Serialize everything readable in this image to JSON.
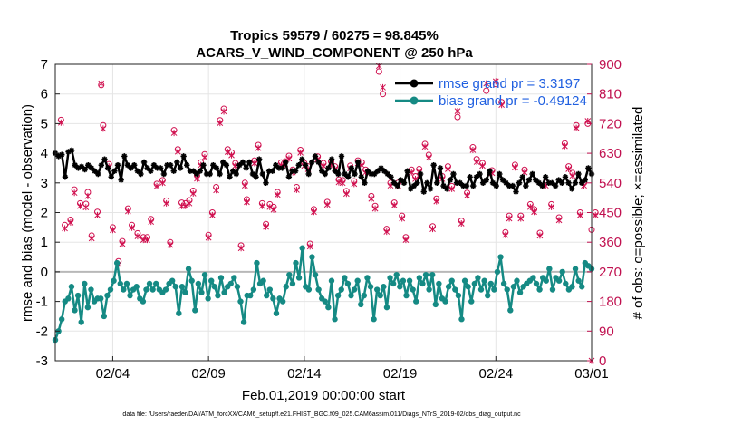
{
  "chart_data": {
    "type": "line",
    "title": "Tropics 59579 / 60275 = 98.845%",
    "subtitle": "ACARS_V_WIND_COMPONENT @ 250 hPa",
    "xlabel": "Feb.01,2019 00:00:00 start",
    "ylabel_left": "rmse and bias (model - observation)",
    "ylabel_right": "# of obs: o=possible; ×=assimilated",
    "footnote": "data file: /Users/raeder/DAI/ATM_forcXX/CAM6_setup/f.e21.FHIST_BGC.f09_025.CAM6assim.011/Diags_NTrS_2019-02/obs_diag_output.nc",
    "xlim": [
      0,
      28
    ],
    "ylim_left": [
      -3,
      7
    ],
    "ylim_right": [
      0,
      900
    ],
    "x_ticks": [
      {
        "x": 3,
        "label": "02/04"
      },
      {
        "x": 8,
        "label": "02/09"
      },
      {
        "x": 13,
        "label": "02/14"
      },
      {
        "x": 18,
        "label": "02/19"
      },
      {
        "x": 23,
        "label": "02/24"
      },
      {
        "x": 28,
        "label": "03/01"
      }
    ],
    "y_ticks_left": [
      "-3",
      "-2",
      "-1",
      "0",
      "1",
      "2",
      "3",
      "4",
      "5",
      "6",
      "7"
    ],
    "y_ticks_right": [
      "0",
      "90",
      "180",
      "270",
      "360",
      "450",
      "540",
      "630",
      "720",
      "810",
      "900"
    ],
    "zero_line": 0,
    "colors": {
      "rmse": "#000000",
      "bias": "#158a84",
      "obs": "#d0104f",
      "grid": "#e5e5e5",
      "legend_text": "#1f5fe0",
      "right_axis": "#c0104f"
    },
    "series": [
      {
        "name": "rmse grand pr = 3.3197",
        "color": "#000000",
        "values": [
          4.0,
          3.9,
          3.95,
          3.2,
          4.05,
          4.1,
          3.6,
          3.5,
          3.55,
          3.45,
          3.6,
          3.5,
          3.4,
          3.3,
          3.6,
          3.8,
          3.5,
          3.2,
          3.4,
          3.6,
          3.1,
          3.9,
          3.6,
          3.5,
          3.6,
          3.4,
          3.3,
          3.7,
          3.5,
          3.4,
          3.6,
          3.5,
          3.5,
          3.3,
          3.6,
          3.6,
          3.4,
          3.7,
          3.5,
          3.9,
          3.6,
          3.4,
          3.4,
          3.3,
          3.4,
          3.6,
          3.3,
          3.3,
          3.6,
          3.5,
          3.3,
          3.7,
          3.6,
          3.2,
          3.4,
          3.3,
          3.6,
          3.7,
          3.5,
          3.7,
          3.3,
          3.2,
          3.8,
          3.3,
          3.0,
          3.4,
          3.4,
          3.6,
          3.5,
          3.5,
          3.7,
          3.2,
          3.4,
          3.4,
          3.6,
          3.8,
          3.6,
          3.3,
          3.7,
          3.9,
          3.7,
          3.4,
          3.3,
          3.5,
          3.8,
          3.4,
          3.3,
          3.9,
          3.3,
          3.2,
          3.5,
          3.3,
          3.7,
          3.2,
          3.0,
          3.4,
          3.3,
          3.3,
          3.4,
          3.5,
          3.4,
          3.3,
          3.2,
          3.0,
          2.9,
          3.1,
          3.0,
          3.4,
          2.8,
          2.9,
          3.0,
          3.3,
          2.7,
          3.0,
          2.8,
          3.6,
          3.0,
          3.5,
          2.9,
          2.8,
          3.1,
          3.3,
          3.0,
          3.0,
          2.9,
          2.9,
          3.2,
          2.9,
          3.2,
          3.3,
          3.0,
          3.1,
          3.4,
          3.0,
          2.9,
          3.3,
          3.1,
          3.0,
          2.9,
          2.9,
          2.7,
          3.0,
          3.2,
          2.9,
          3.1,
          3.3,
          3.1,
          3.0,
          2.9,
          3.2,
          3.0,
          3.0,
          2.9,
          3.1,
          3.0,
          3.2,
          3.0,
          2.8,
          3.0,
          3.3,
          3.0,
          3.1,
          3.5,
          3.3
        ]
      },
      {
        "name": "bias grand pr = -0.49124",
        "color": "#158a84",
        "values": [
          -2.3,
          -2.0,
          -1.6,
          -1.0,
          -0.9,
          -0.5,
          -1.3,
          -0.8,
          -1.7,
          -0.4,
          -1.2,
          -0.6,
          -1.0,
          -0.9,
          -0.9,
          -1.5,
          -0.8,
          -0.6,
          -0.3,
          0.3,
          -0.4,
          -0.6,
          -0.4,
          -0.8,
          -0.6,
          -0.5,
          -0.9,
          -1.0,
          -0.6,
          -0.4,
          -0.6,
          -0.4,
          -0.6,
          -0.7,
          -0.6,
          -0.4,
          -0.3,
          -0.5,
          -1.4,
          -0.5,
          -0.7,
          0.1,
          -0.3,
          -1.3,
          -0.4,
          -0.7,
          -0.1,
          -0.9,
          -0.3,
          -0.5,
          -0.8,
          -0.2,
          -0.7,
          -0.5,
          -0.4,
          -0.2,
          -0.5,
          -1.0,
          -1.7,
          -0.8,
          -0.8,
          -0.6,
          0.3,
          -0.4,
          -0.3,
          -0.8,
          -0.6,
          -0.9,
          -1.4,
          -0.9,
          -1.0,
          -0.5,
          -0.1,
          -0.4,
          0.3,
          -0.2,
          0.8,
          -0.5,
          -0.6,
          0.5,
          -0.1,
          -0.6,
          -0.9,
          -1.0,
          -1.2,
          -0.3,
          -1.6,
          -0.8,
          -0.6,
          -0.2,
          -0.4,
          -0.8,
          -0.6,
          -0.3,
          -1.1,
          -0.8,
          -0.2,
          -0.5,
          -1.6,
          -0.6,
          -0.8,
          -0.5,
          -1.2,
          -0.2,
          -0.4,
          -0.1,
          -0.5,
          -0.3,
          -0.8,
          -0.3,
          -0.6,
          -1.0,
          -0.2,
          -0.4,
          -0.1,
          -0.6,
          -0.1,
          -1.1,
          -0.4,
          -0.9,
          -1.0,
          -0.5,
          -0.3,
          -0.6,
          -0.8,
          -1.6,
          -0.3,
          -0.5,
          -1.0,
          -0.4,
          -0.2,
          -0.6,
          -0.3,
          -0.8,
          -0.4,
          -0.6,
          0.0,
          0.5,
          -0.4,
          -0.6,
          -1.3,
          -0.5,
          -0.3,
          -0.7,
          -0.5,
          -0.4,
          -0.3,
          -0.2,
          -0.4,
          -0.6,
          -0.2,
          -0.3,
          0.1,
          -0.6,
          -0.2,
          -0.3,
          0.0,
          -0.4,
          -0.6,
          -0.5,
          0.1,
          -0.3,
          -0.5,
          0.3,
          0.2,
          0.1
        ]
      }
    ],
    "obs_possible_pts": [
      [
        0.3,
        731
      ],
      [
        0.5,
        412
      ],
      [
        0.8,
        428
      ],
      [
        1.0,
        520
      ],
      [
        1.3,
        478
      ],
      [
        1.6,
        476
      ],
      [
        1.7,
        512
      ],
      [
        1.9,
        380
      ],
      [
        2.2,
        452
      ],
      [
        2.4,
        837
      ],
      [
        2.5,
        715
      ],
      [
        2.8,
        597
      ],
      [
        3.0,
        405
      ],
      [
        3.3,
        302
      ],
      [
        3.5,
        363
      ],
      [
        3.8,
        462
      ],
      [
        4.0,
        412
      ],
      [
        4.3,
        387
      ],
      [
        4.6,
        375
      ],
      [
        4.8,
        375
      ],
      [
        5.0,
        430
      ],
      [
        5.3,
        537
      ],
      [
        5.6,
        548
      ],
      [
        5.8,
        486
      ],
      [
        6.0,
        360
      ],
      [
        6.2,
        700
      ],
      [
        6.4,
        642
      ],
      [
        6.6,
        480
      ],
      [
        6.8,
        478
      ],
      [
        7.0,
        487
      ],
      [
        7.2,
        516
      ],
      [
        7.4,
        562
      ],
      [
        7.6,
        602
      ],
      [
        7.8,
        627
      ],
      [
        8.0,
        382
      ],
      [
        8.2,
        450
      ],
      [
        8.4,
        527
      ],
      [
        8.6,
        730
      ],
      [
        8.8,
        765
      ],
      [
        9.0,
        642
      ],
      [
        9.2,
        632
      ],
      [
        9.4,
        600
      ],
      [
        9.7,
        350
      ],
      [
        9.9,
        540
      ],
      [
        10.0,
        490
      ],
      [
        10.4,
        608
      ],
      [
        10.6,
        655
      ],
      [
        10.8,
        478
      ],
      [
        11.0,
        415
      ],
      [
        11.2,
        475
      ],
      [
        11.4,
        467
      ],
      [
        11.6,
        512
      ],
      [
        11.8,
        602
      ],
      [
        12.0,
        605
      ],
      [
        12.2,
        622
      ],
      [
        12.4,
        580
      ],
      [
        12.6,
        527
      ],
      [
        12.8,
        640
      ],
      [
        13.0,
        600
      ],
      [
        13.2,
        590
      ],
      [
        13.3,
        355
      ],
      [
        13.5,
        460
      ],
      [
        13.7,
        620
      ],
      [
        14.0,
        600
      ],
      [
        14.2,
        482
      ],
      [
        14.4,
        605
      ],
      [
        14.6,
        590
      ],
      [
        14.8,
        550
      ],
      [
        15.0,
        548
      ],
      [
        15.2,
        515
      ],
      [
        15.4,
        592
      ],
      [
        15.6,
        545
      ],
      [
        15.8,
        608
      ],
      [
        16.0,
        602
      ],
      [
        16.2,
        580
      ],
      [
        16.5,
        500
      ],
      [
        16.7,
        470
      ],
      [
        16.9,
        878
      ],
      [
        17.1,
        810
      ],
      [
        17.3,
        400
      ],
      [
        17.5,
        540
      ],
      [
        17.7,
        480
      ],
      [
        17.9,
        540
      ],
      [
        18.1,
        440
      ],
      [
        18.3,
        375
      ],
      [
        18.6,
        580
      ],
      [
        18.8,
        560
      ],
      [
        19.0,
        582
      ],
      [
        19.3,
        658
      ],
      [
        19.5,
        625
      ],
      [
        19.7,
        408
      ],
      [
        19.9,
        492
      ],
      [
        20.2,
        560
      ],
      [
        20.5,
        590
      ],
      [
        20.7,
        530
      ],
      [
        21.0,
        740
      ],
      [
        21.2,
        425
      ],
      [
        21.5,
        510
      ],
      [
        21.8,
        648
      ],
      [
        22.0,
        612
      ],
      [
        22.3,
        600
      ],
      [
        22.5,
        820
      ],
      [
        22.8,
        578
      ],
      [
        23.0,
        840
      ],
      [
        23.3,
        785
      ],
      [
        23.5,
        390
      ],
      [
        23.7,
        440
      ],
      [
        24.0,
        595
      ],
      [
        24.3,
        440
      ],
      [
        24.5,
        580
      ],
      [
        24.8,
        475
      ],
      [
        25.0,
        460
      ],
      [
        25.3,
        388
      ],
      [
        25.6,
        540
      ],
      [
        25.9,
        475
      ],
      [
        26.3,
        435
      ],
      [
        26.6,
        660
      ],
      [
        26.8,
        590
      ],
      [
        27.0,
        570
      ],
      [
        27.2,
        715
      ],
      [
        27.4,
        450
      ],
      [
        27.6,
        540
      ],
      [
        27.8,
        720
      ],
      [
        28.0,
        398
      ],
      [
        28.2,
        450
      ]
    ],
    "obs_assimilated_pts": [
      [
        0.3,
        723
      ],
      [
        0.5,
        402
      ],
      [
        0.8,
        420
      ],
      [
        1.0,
        510
      ],
      [
        1.3,
        470
      ],
      [
        1.6,
        466
      ],
      [
        1.7,
        500
      ],
      [
        1.9,
        372
      ],
      [
        2.2,
        442
      ],
      [
        2.4,
        842
      ],
      [
        2.5,
        705
      ],
      [
        2.8,
        590
      ],
      [
        3.0,
        397
      ],
      [
        3.3,
        293
      ],
      [
        3.5,
        355
      ],
      [
        3.8,
        454
      ],
      [
        4.0,
        404
      ],
      [
        4.3,
        378
      ],
      [
        4.6,
        367
      ],
      [
        4.8,
        367
      ],
      [
        5.0,
        422
      ],
      [
        5.3,
        530
      ],
      [
        5.6,
        540
      ],
      [
        5.8,
        478
      ],
      [
        6.0,
        352
      ],
      [
        6.2,
        692
      ],
      [
        6.4,
        635
      ],
      [
        6.6,
        470
      ],
      [
        6.8,
        470
      ],
      [
        7.0,
        478
      ],
      [
        7.2,
        508
      ],
      [
        7.4,
        553
      ],
      [
        7.6,
        594
      ],
      [
        7.8,
        618
      ],
      [
        8.0,
        374
      ],
      [
        8.2,
        442
      ],
      [
        8.4,
        518
      ],
      [
        8.6,
        722
      ],
      [
        8.8,
        757
      ],
      [
        9.0,
        634
      ],
      [
        9.2,
        624
      ],
      [
        9.4,
        592
      ],
      [
        9.7,
        342
      ],
      [
        9.9,
        532
      ],
      [
        10.0,
        482
      ],
      [
        10.4,
        600
      ],
      [
        10.6,
        646
      ],
      [
        10.8,
        470
      ],
      [
        11.0,
        407
      ],
      [
        11.2,
        467
      ],
      [
        11.4,
        459
      ],
      [
        11.6,
        504
      ],
      [
        11.8,
        594
      ],
      [
        12.0,
        597
      ],
      [
        12.2,
        614
      ],
      [
        12.4,
        572
      ],
      [
        12.6,
        519
      ],
      [
        12.8,
        632
      ],
      [
        13.0,
        592
      ],
      [
        13.2,
        582
      ],
      [
        13.3,
        347
      ],
      [
        13.5,
        452
      ],
      [
        13.7,
        612
      ],
      [
        14.0,
        592
      ],
      [
        14.2,
        474
      ],
      [
        14.4,
        597
      ],
      [
        14.6,
        582
      ],
      [
        14.8,
        542
      ],
      [
        15.0,
        540
      ],
      [
        15.2,
        507
      ],
      [
        15.4,
        584
      ],
      [
        15.6,
        537
      ],
      [
        15.8,
        600
      ],
      [
        16.0,
        594
      ],
      [
        16.2,
        572
      ],
      [
        16.5,
        492
      ],
      [
        16.7,
        462
      ],
      [
        16.9,
        895
      ],
      [
        17.1,
        830
      ],
      [
        17.3,
        392
      ],
      [
        17.5,
        532
      ],
      [
        17.7,
        472
      ],
      [
        17.9,
        532
      ],
      [
        18.1,
        432
      ],
      [
        18.3,
        367
      ],
      [
        18.6,
        572
      ],
      [
        18.8,
        552
      ],
      [
        19.0,
        574
      ],
      [
        19.3,
        650
      ],
      [
        19.5,
        617
      ],
      [
        19.7,
        400
      ],
      [
        19.9,
        484
      ],
      [
        20.2,
        552
      ],
      [
        20.5,
        582
      ],
      [
        20.7,
        522
      ],
      [
        21.0,
        758
      ],
      [
        21.2,
        417
      ],
      [
        21.5,
        502
      ],
      [
        21.8,
        640
      ],
      [
        22.0,
        604
      ],
      [
        22.3,
        592
      ],
      [
        22.5,
        842
      ],
      [
        22.8,
        570
      ],
      [
        23.0,
        848
      ],
      [
        23.3,
        777
      ],
      [
        23.5,
        382
      ],
      [
        23.7,
        432
      ],
      [
        24.0,
        587
      ],
      [
        24.3,
        432
      ],
      [
        24.5,
        572
      ],
      [
        24.8,
        467
      ],
      [
        25.0,
        452
      ],
      [
        25.3,
        380
      ],
      [
        25.6,
        532
      ],
      [
        25.9,
        467
      ],
      [
        26.3,
        427
      ],
      [
        26.6,
        652
      ],
      [
        26.8,
        582
      ],
      [
        27.0,
        562
      ],
      [
        27.2,
        707
      ],
      [
        27.4,
        442
      ],
      [
        27.6,
        532
      ],
      [
        27.8,
        728
      ],
      [
        28.0,
        0
      ],
      [
        28.2,
        442
      ]
    ]
  }
}
